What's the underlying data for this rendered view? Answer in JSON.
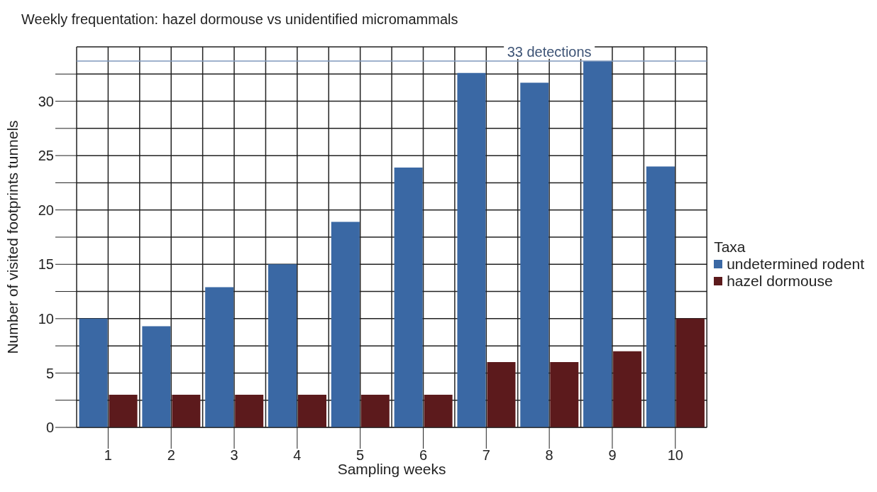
{
  "chart_data": {
    "type": "bar",
    "title": "Weekly frequentation: hazel dormouse vs unidentified micromammals",
    "xlabel": "Sampling weeks",
    "ylabel": "Number of visited footprints tunnels",
    "legend_title": "Taxa",
    "categories": [
      "1",
      "2",
      "3",
      "4",
      "5",
      "6",
      "7",
      "8",
      "9",
      "10"
    ],
    "series": [
      {
        "name": "undetermined rodent",
        "color": "#3a68a4",
        "values": [
          10,
          9.3,
          12.9,
          15,
          18.9,
          23.9,
          32.6,
          31.7,
          33.7,
          24
        ]
      },
      {
        "name": "hazel dormouse",
        "color": "#5c1a1c",
        "values": [
          3,
          3,
          3,
          3,
          3,
          3,
          6,
          6,
          7,
          10
        ]
      }
    ],
    "ylim": [
      0,
      35
    ],
    "yticks": [
      0,
      {
        "value": 2.5,
        "label": null
      },
      5,
      {
        "value": 7.5,
        "label": null
      },
      10,
      {
        "value": 12.5,
        "label": null
      },
      15,
      {
        "value": 17.5,
        "label": null
      },
      20,
      {
        "value": 22.5,
        "label": null
      },
      25,
      {
        "value": 27.5,
        "label": null
      },
      30,
      {
        "value": 32.5,
        "label": null
      }
    ],
    "ref_lines": [
      {
        "axis": "y",
        "value": 33.7,
        "label": "33 detections",
        "color": "#7f98bd"
      }
    ],
    "grid": true,
    "legend": "right"
  }
}
